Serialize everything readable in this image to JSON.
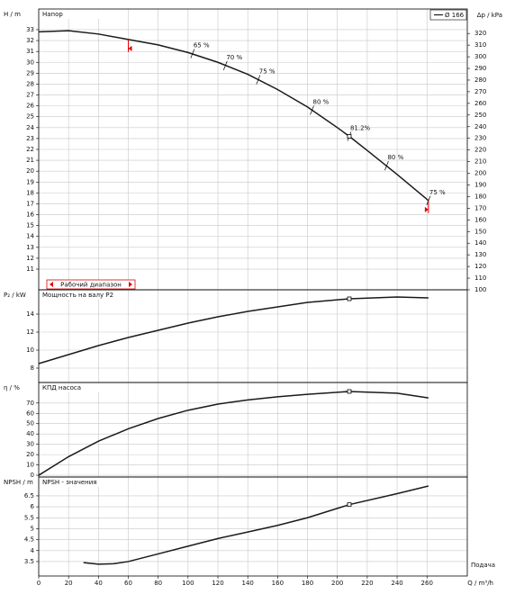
{
  "chart_data": [
    {
      "type": "line",
      "title": "Напор",
      "y_label": "H / m",
      "y2_label": "Δp / kPa",
      "series": [
        {
          "name": "Ø 166",
          "color": "#1a1a1a",
          "x": [
            0,
            20,
            40,
            60,
            80,
            100,
            120,
            140,
            160,
            180,
            200,
            208,
            220,
            240,
            261
          ],
          "values": [
            32.8,
            32.9,
            32.6,
            32.1,
            31.6,
            30.9,
            30.0,
            28.9,
            27.5,
            25.9,
            24.0,
            23.2,
            21.9,
            19.7,
            17.3
          ]
        }
      ],
      "ylim": [
        9.1,
        34.9
      ],
      "yticks": [
        11,
        12,
        13,
        14,
        15,
        16,
        17,
        18,
        19,
        20,
        21,
        22,
        23,
        24,
        25,
        26,
        27,
        28,
        29,
        30,
        31,
        32,
        33
      ],
      "y2lim": [
        100,
        341
      ],
      "y2ticks": [
        100,
        110,
        120,
        130,
        140,
        150,
        160,
        170,
        180,
        190,
        200,
        210,
        220,
        230,
        240,
        250,
        260,
        270,
        280,
        290,
        300,
        310,
        320
      ],
      "annotations": [
        {
          "text": "65 %",
          "x": 103,
          "y": 30.8
        },
        {
          "text": "70 %",
          "x": 125,
          "y": 29.7
        },
        {
          "text": "75 %",
          "x": 147,
          "y": 28.4
        },
        {
          "text": "80 %",
          "x": 183,
          "y": 25.6
        },
        {
          "text": "81.2%",
          "x": 208,
          "y": 23.2
        },
        {
          "text": "80 %",
          "x": 233,
          "y": 20.5
        },
        {
          "text": "75 %",
          "x": 261,
          "y": 17.3
        }
      ],
      "duty_point": {
        "x": 208,
        "y": 23.2
      },
      "operating_range": {
        "label": "Рабочий диапазон",
        "x": [
          60,
          261
        ],
        "color": "#e00000"
      }
    },
    {
      "type": "line",
      "title": "Мощность на валу P2",
      "y_label": "P₂ / kW",
      "series": [
        {
          "name": "Ø 166",
          "color": "#1a1a1a",
          "x": [
            0,
            20,
            40,
            60,
            80,
            100,
            120,
            140,
            160,
            180,
            208,
            240,
            261
          ],
          "values": [
            8.5,
            9.5,
            10.5,
            11.4,
            12.2,
            13.0,
            13.7,
            14.3,
            14.8,
            15.3,
            15.7,
            15.9,
            15.8
          ]
        }
      ],
      "ylim": [
        6.4,
        16.7
      ],
      "yticks": [
        8,
        10,
        12,
        14
      ],
      "duty_point": {
        "x": 208,
        "y": 15.7
      }
    },
    {
      "type": "line",
      "title": "КПД насоса",
      "y_label": "η / %",
      "series": [
        {
          "name": "Ø 166",
          "color": "#1a1a1a",
          "x": [
            0,
            20,
            40,
            60,
            80,
            100,
            120,
            140,
            160,
            180,
            208,
            240,
            261
          ],
          "values": [
            0,
            18,
            33,
            45,
            55,
            63,
            69,
            73,
            76,
            78.5,
            81.2,
            79.5,
            75
          ]
        }
      ],
      "ylim": [
        -1.7,
        89.9
      ],
      "yticks": [
        0,
        10,
        20,
        30,
        40,
        50,
        60,
        70
      ],
      "duty_point": {
        "x": 208,
        "y": 81.2
      }
    },
    {
      "type": "line",
      "title": "NPSH - значения",
      "y_label": "NPSH / m",
      "x_label": "Q / m³/h",
      "x_note": "Подача",
      "series": [
        {
          "name": "Ø 166",
          "color": "#1a1a1a",
          "x": [
            30,
            40,
            50,
            60,
            80,
            100,
            120,
            140,
            160,
            180,
            208,
            240,
            261
          ],
          "values": [
            3.45,
            3.38,
            3.4,
            3.5,
            3.85,
            4.2,
            4.55,
            4.85,
            5.15,
            5.5,
            6.1,
            6.6,
            6.95
          ]
        }
      ],
      "ylim": [
        2.84,
        7.36
      ],
      "yticks": [
        3.5,
        4,
        4.5,
        5,
        5.5,
        6,
        6.5
      ],
      "duty_point": {
        "x": 208,
        "y": 6.1
      },
      "xlim": [
        0,
        287
      ],
      "xticks": [
        0,
        20,
        40,
        60,
        80,
        100,
        120,
        140,
        160,
        180,
        200,
        220,
        240,
        260
      ]
    }
  ]
}
